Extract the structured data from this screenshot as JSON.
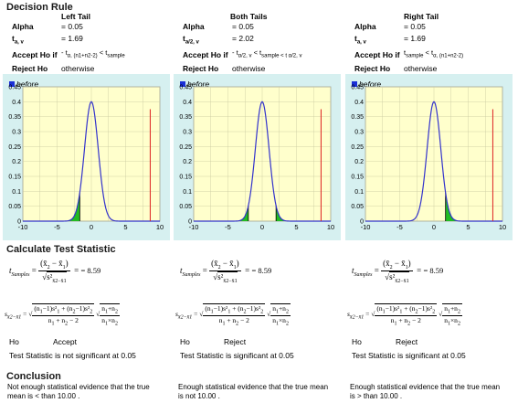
{
  "header": {
    "title": "Decision Rule"
  },
  "panels": [
    {
      "name": "Left Tail",
      "alpha_label": "Alpha",
      "alpha_value": "= 0.05",
      "t_label": "t",
      "t_sub": "a, v",
      "t_value": "= 1.69",
      "accept_label": "Accept Ho if",
      "accept_rule": "- t",
      "accept_rule_sub": "α, (n1+n2-2)",
      "accept_rule_lt": "< t",
      "accept_rule_tail": "sample",
      "reject_label": "Reject Ho",
      "reject_value": "otherwise",
      "legend": "before",
      "tails": "left",
      "crit": [
        -1.69
      ],
      "sample": 8.59,
      "test_result_ho": "Ho",
      "test_result_action": "Accept",
      "test_statement": "Test Statistic is not significant at 0.05",
      "conclusion": "Not enough statistical evidence that the true mean is < than 10.00 ."
    },
    {
      "name": "Both Tails",
      "alpha_label": "Alpha",
      "alpha_value": "= 0.05",
      "t_label": "t",
      "t_sub": "a/2, v",
      "t_value": "= 2.02",
      "accept_label": "Accept Ho if",
      "accept_rule": "- t",
      "accept_rule_sub": "α/2, v",
      "accept_rule_lt": "< t",
      "accept_rule_tail": "sample < t α/2, v",
      "reject_label": "Reject Ho",
      "reject_value": "otherwise",
      "legend": "before",
      "tails": "both",
      "crit": [
        -2.02,
        2.02
      ],
      "sample": 8.59,
      "test_result_ho": "Ho",
      "test_result_action": "Reject",
      "test_statement": "Test Statistic is significant at 0.05",
      "conclusion": "Enough statistical evidence that the true mean is not 10.00 ."
    },
    {
      "name": "Right Tail",
      "alpha_label": "Alpha",
      "alpha_value": "= 0.05",
      "t_label": "t",
      "t_sub": "a, v",
      "t_value": "= 1.69",
      "accept_label": "Accept Ho if",
      "accept_rule": "t",
      "accept_rule_sub": "sample",
      "accept_rule_lt": "< t",
      "accept_rule_tail": "α, (n1+n2-2)",
      "reject_label": "Reject Ho",
      "reject_value": "otherwise",
      "legend": "before",
      "tails": "right",
      "crit": [
        1.69
      ],
      "sample": 8.59,
      "test_result_ho": "Ho",
      "test_result_action": "Reject",
      "test_statement": "Test Statistic is significant at 0.05",
      "conclusion": "Enough statistical evidence that the true mean is > than 10.00 ."
    }
  ],
  "calc": {
    "title": "Calculate Test Statistic",
    "t_samples_label": "t",
    "t_samples_sub": "Samples",
    "t_value": "= 8.59"
  },
  "conclusion_title": "Conclusion",
  "chart_data": {
    "type": "line",
    "xlim": [
      -10,
      10
    ],
    "ylim": [
      0,
      0.45
    ],
    "xticks": [
      "-10",
      "-5",
      "0",
      "5",
      "10"
    ],
    "yticks": [
      "0",
      "0.05",
      "0.1",
      "0.15",
      "0.2",
      "0.25",
      "0.3",
      "0.35",
      "0.4",
      "0.45"
    ],
    "curve_color": "#3333cc",
    "shade_color": "#22bb22",
    "sample_line_color": "#dd2222",
    "plot_bg": "#ffffcc"
  }
}
